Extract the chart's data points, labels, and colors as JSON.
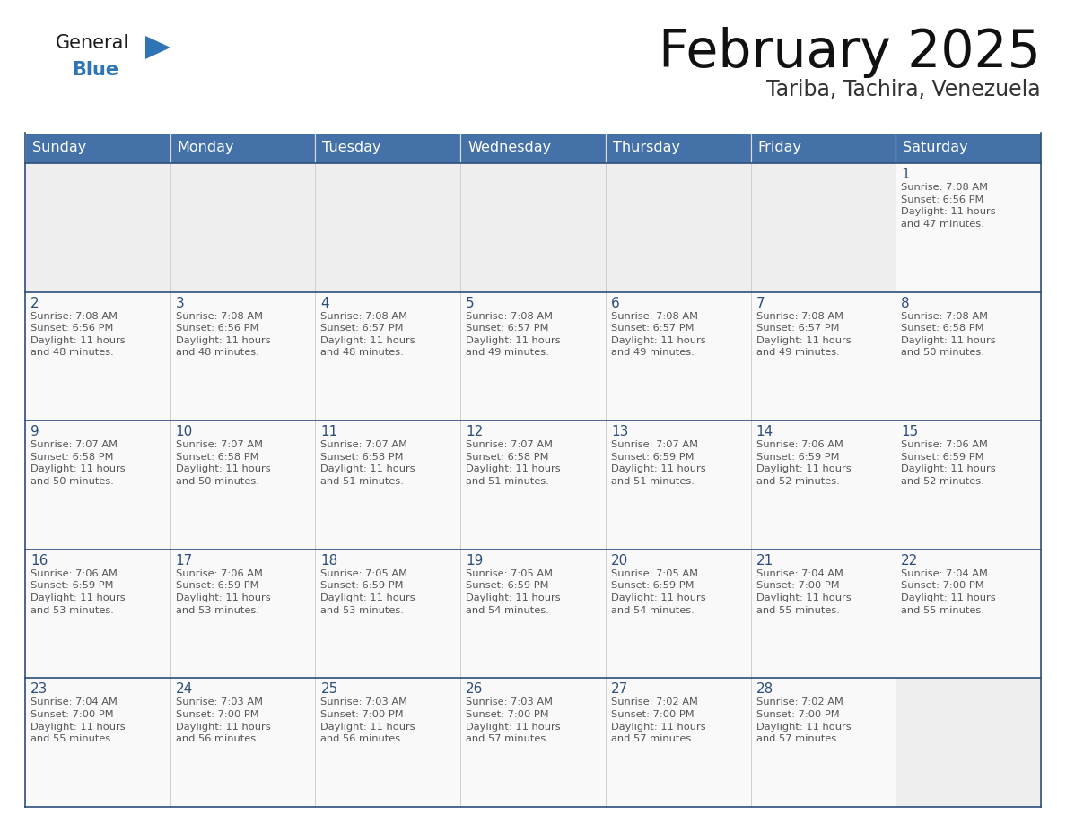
{
  "title": "February 2025",
  "subtitle": "Tariba, Tachira, Venezuela",
  "header_bg_color": "#4472a8",
  "header_text_color": "#ffffff",
  "row_border_color": "#2e4d7b",
  "day_number_color": "#2e4d7b",
  "info_text_color": "#555555",
  "cell_bg_color": "#f9f9f9",
  "empty_cell_bg_color": "#eeeeee",
  "logo_general_color": "#1a1a1a",
  "logo_blue_color": "#2e75b6",
  "logo_triangle_color": "#2e75b6",
  "days_of_week": [
    "Sunday",
    "Monday",
    "Tuesday",
    "Wednesday",
    "Thursday",
    "Friday",
    "Saturday"
  ],
  "weeks": [
    [
      {
        "day": "",
        "info": ""
      },
      {
        "day": "",
        "info": ""
      },
      {
        "day": "",
        "info": ""
      },
      {
        "day": "",
        "info": ""
      },
      {
        "day": "",
        "info": ""
      },
      {
        "day": "",
        "info": ""
      },
      {
        "day": "1",
        "info": "Sunrise: 7:08 AM\nSunset: 6:56 PM\nDaylight: 11 hours\nand 47 minutes."
      }
    ],
    [
      {
        "day": "2",
        "info": "Sunrise: 7:08 AM\nSunset: 6:56 PM\nDaylight: 11 hours\nand 48 minutes."
      },
      {
        "day": "3",
        "info": "Sunrise: 7:08 AM\nSunset: 6:56 PM\nDaylight: 11 hours\nand 48 minutes."
      },
      {
        "day": "4",
        "info": "Sunrise: 7:08 AM\nSunset: 6:57 PM\nDaylight: 11 hours\nand 48 minutes."
      },
      {
        "day": "5",
        "info": "Sunrise: 7:08 AM\nSunset: 6:57 PM\nDaylight: 11 hours\nand 49 minutes."
      },
      {
        "day": "6",
        "info": "Sunrise: 7:08 AM\nSunset: 6:57 PM\nDaylight: 11 hours\nand 49 minutes."
      },
      {
        "day": "7",
        "info": "Sunrise: 7:08 AM\nSunset: 6:57 PM\nDaylight: 11 hours\nand 49 minutes."
      },
      {
        "day": "8",
        "info": "Sunrise: 7:08 AM\nSunset: 6:58 PM\nDaylight: 11 hours\nand 50 minutes."
      }
    ],
    [
      {
        "day": "9",
        "info": "Sunrise: 7:07 AM\nSunset: 6:58 PM\nDaylight: 11 hours\nand 50 minutes."
      },
      {
        "day": "10",
        "info": "Sunrise: 7:07 AM\nSunset: 6:58 PM\nDaylight: 11 hours\nand 50 minutes."
      },
      {
        "day": "11",
        "info": "Sunrise: 7:07 AM\nSunset: 6:58 PM\nDaylight: 11 hours\nand 51 minutes."
      },
      {
        "day": "12",
        "info": "Sunrise: 7:07 AM\nSunset: 6:58 PM\nDaylight: 11 hours\nand 51 minutes."
      },
      {
        "day": "13",
        "info": "Sunrise: 7:07 AM\nSunset: 6:59 PM\nDaylight: 11 hours\nand 51 minutes."
      },
      {
        "day": "14",
        "info": "Sunrise: 7:06 AM\nSunset: 6:59 PM\nDaylight: 11 hours\nand 52 minutes."
      },
      {
        "day": "15",
        "info": "Sunrise: 7:06 AM\nSunset: 6:59 PM\nDaylight: 11 hours\nand 52 minutes."
      }
    ],
    [
      {
        "day": "16",
        "info": "Sunrise: 7:06 AM\nSunset: 6:59 PM\nDaylight: 11 hours\nand 53 minutes."
      },
      {
        "day": "17",
        "info": "Sunrise: 7:06 AM\nSunset: 6:59 PM\nDaylight: 11 hours\nand 53 minutes."
      },
      {
        "day": "18",
        "info": "Sunrise: 7:05 AM\nSunset: 6:59 PM\nDaylight: 11 hours\nand 53 minutes."
      },
      {
        "day": "19",
        "info": "Sunrise: 7:05 AM\nSunset: 6:59 PM\nDaylight: 11 hours\nand 54 minutes."
      },
      {
        "day": "20",
        "info": "Sunrise: 7:05 AM\nSunset: 6:59 PM\nDaylight: 11 hours\nand 54 minutes."
      },
      {
        "day": "21",
        "info": "Sunrise: 7:04 AM\nSunset: 7:00 PM\nDaylight: 11 hours\nand 55 minutes."
      },
      {
        "day": "22",
        "info": "Sunrise: 7:04 AM\nSunset: 7:00 PM\nDaylight: 11 hours\nand 55 minutes."
      }
    ],
    [
      {
        "day": "23",
        "info": "Sunrise: 7:04 AM\nSunset: 7:00 PM\nDaylight: 11 hours\nand 55 minutes."
      },
      {
        "day": "24",
        "info": "Sunrise: 7:03 AM\nSunset: 7:00 PM\nDaylight: 11 hours\nand 56 minutes."
      },
      {
        "day": "25",
        "info": "Sunrise: 7:03 AM\nSunset: 7:00 PM\nDaylight: 11 hours\nand 56 minutes."
      },
      {
        "day": "26",
        "info": "Sunrise: 7:03 AM\nSunset: 7:00 PM\nDaylight: 11 hours\nand 57 minutes."
      },
      {
        "day": "27",
        "info": "Sunrise: 7:02 AM\nSunset: 7:00 PM\nDaylight: 11 hours\nand 57 minutes."
      },
      {
        "day": "28",
        "info": "Sunrise: 7:02 AM\nSunset: 7:00 PM\nDaylight: 11 hours\nand 57 minutes."
      },
      {
        "day": "",
        "info": ""
      }
    ]
  ]
}
